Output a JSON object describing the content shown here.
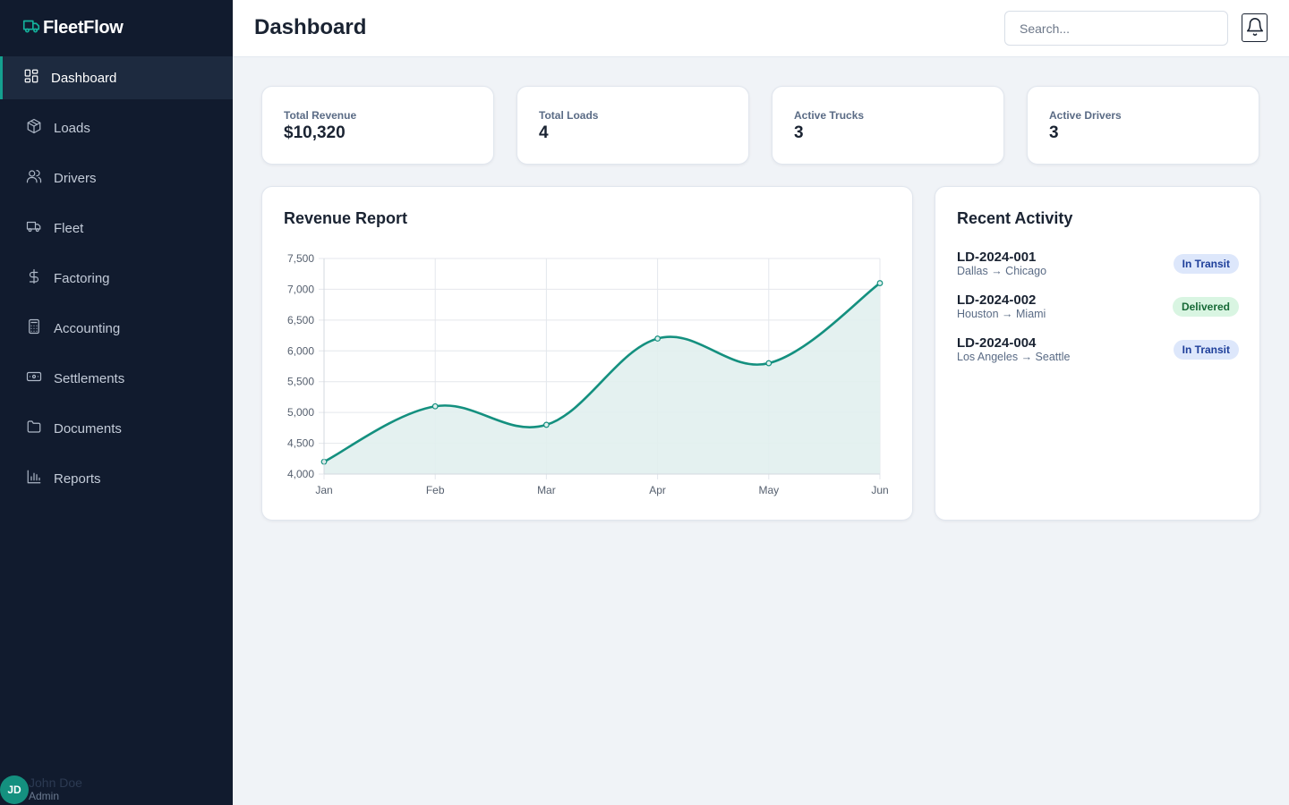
{
  "brand": {
    "name": "FleetFlow",
    "icon": "truck-icon"
  },
  "sidebar": {
    "items": [
      {
        "label": "Dashboard",
        "icon": "dashboard-grid-icon",
        "active": true
      },
      {
        "label": "Loads",
        "icon": "package-icon"
      },
      {
        "label": "Drivers",
        "icon": "users-icon"
      },
      {
        "label": "Fleet",
        "icon": "truck-icon"
      },
      {
        "label": "Factoring",
        "icon": "dollar-icon"
      },
      {
        "label": "Accounting",
        "icon": "calculator-icon"
      },
      {
        "label": "Settlements",
        "icon": "banknote-icon"
      },
      {
        "label": "Documents",
        "icon": "folder-icon"
      },
      {
        "label": "Reports",
        "icon": "bar-chart-icon"
      }
    ]
  },
  "user": {
    "initials": "JD",
    "name": "John Doe",
    "role": "Admin"
  },
  "header": {
    "title": "Dashboard",
    "search_placeholder": "Search..."
  },
  "stats": [
    {
      "label": "Total Revenue",
      "value": "$10,320"
    },
    {
      "label": "Total Loads",
      "value": "4"
    },
    {
      "label": "Active Trucks",
      "value": "3"
    },
    {
      "label": "Active Drivers",
      "value": "3"
    }
  ],
  "revenue_card": {
    "title": "Revenue Report"
  },
  "chart_data": {
    "type": "area",
    "title": "Revenue Report",
    "categories": [
      "Jan",
      "Feb",
      "Mar",
      "Apr",
      "May",
      "Jun"
    ],
    "values": [
      4200,
      5100,
      4800,
      6200,
      5800,
      7100
    ],
    "ylim": [
      4000,
      7500
    ],
    "yticks": [
      4000,
      4500,
      5000,
      5500,
      6000,
      6500,
      7000,
      7500
    ],
    "grid": true,
    "colors": {
      "line": "#14907f",
      "fill": "#e1f0ee"
    }
  },
  "activity": {
    "title": "Recent Activity",
    "items": [
      {
        "id": "LD-2024-001",
        "route": "Dallas → Chicago",
        "status": "In Transit"
      },
      {
        "id": "LD-2024-002",
        "route": "Houston → Miami",
        "status": "Delivered"
      },
      {
        "id": "LD-2024-004",
        "route": "Los Angeles → Seattle",
        "status": "In Transit"
      }
    ]
  },
  "colors": {
    "sidebar_bg": "#111b2e",
    "accent": "#14a08f",
    "transit_badge": "#dde7fb",
    "delivered_badge": "#d9f5e2"
  }
}
